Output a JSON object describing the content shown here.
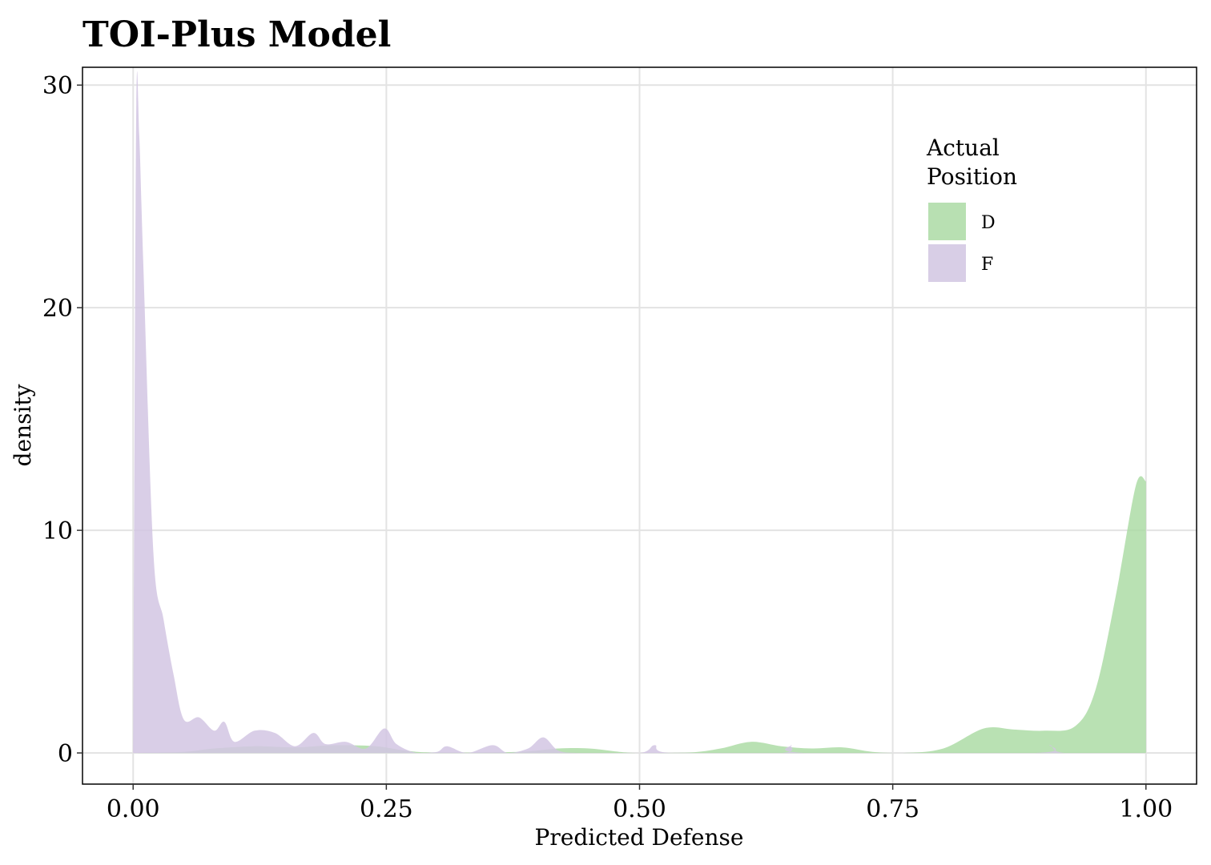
{
  "chart_data": {
    "type": "area",
    "title": "TOI-Plus Model",
    "xlabel": "Predicted Defense",
    "ylabel": "density",
    "xlim": [
      -0.05,
      1.05
    ],
    "ylim": [
      -1.4,
      30.8
    ],
    "x_ticks": [
      {
        "value": 0.0,
        "label": "0.00"
      },
      {
        "value": 0.25,
        "label": "0.25"
      },
      {
        "value": 0.5,
        "label": "0.50"
      },
      {
        "value": 0.75,
        "label": "0.75"
      },
      {
        "value": 1.0,
        "label": "1.00"
      }
    ],
    "y_ticks": [
      {
        "value": 0,
        "label": "0"
      },
      {
        "value": 10,
        "label": "10"
      },
      {
        "value": 20,
        "label": "20"
      },
      {
        "value": 30,
        "label": "30"
      }
    ],
    "grid": true,
    "legend": {
      "title_lines": [
        "Actual",
        "Position"
      ],
      "placement": "top-right",
      "entries": [
        {
          "label": "D",
          "color": "#b8e0b2"
        },
        {
          "label": "F",
          "color": "#d8cee6"
        }
      ]
    },
    "series": [
      {
        "name": "D",
        "color": "#a8d9a0",
        "opacity": 0.8,
        "points": [
          [
            0.0,
            0.0
          ],
          [
            0.05,
            0.05
          ],
          [
            0.08,
            0.2
          ],
          [
            0.12,
            0.3
          ],
          [
            0.16,
            0.25
          ],
          [
            0.2,
            0.35
          ],
          [
            0.24,
            0.3
          ],
          [
            0.27,
            0.1
          ],
          [
            0.3,
            0.02
          ],
          [
            0.38,
            0.05
          ],
          [
            0.42,
            0.2
          ],
          [
            0.45,
            0.2
          ],
          [
            0.48,
            0.05
          ],
          [
            0.5,
            0.0
          ],
          [
            0.55,
            0.02
          ],
          [
            0.58,
            0.2
          ],
          [
            0.61,
            0.5
          ],
          [
            0.64,
            0.3
          ],
          [
            0.67,
            0.2
          ],
          [
            0.7,
            0.25
          ],
          [
            0.73,
            0.05
          ],
          [
            0.76,
            0.0
          ],
          [
            0.8,
            0.2
          ],
          [
            0.84,
            1.1
          ],
          [
            0.87,
            1.05
          ],
          [
            0.9,
            1.0
          ],
          [
            0.93,
            1.2
          ],
          [
            0.95,
            2.8
          ],
          [
            0.97,
            7.0
          ],
          [
            0.99,
            12.0
          ],
          [
            1.0,
            12.2
          ]
        ]
      },
      {
        "name": "F",
        "color": "#d2c6e3",
        "opacity": 0.85,
        "points": [
          [
            0.0,
            0.0
          ],
          [
            0.003,
            28.5
          ],
          [
            0.006,
            27.8
          ],
          [
            0.01,
            22.0
          ],
          [
            0.02,
            9.0
          ],
          [
            0.03,
            6.0
          ],
          [
            0.04,
            3.5
          ],
          [
            0.05,
            1.5
          ],
          [
            0.065,
            1.6
          ],
          [
            0.08,
            1.0
          ],
          [
            0.09,
            1.4
          ],
          [
            0.1,
            0.5
          ],
          [
            0.12,
            1.0
          ],
          [
            0.14,
            0.9
          ],
          [
            0.16,
            0.3
          ],
          [
            0.178,
            0.9
          ],
          [
            0.19,
            0.4
          ],
          [
            0.21,
            0.5
          ],
          [
            0.23,
            0.2
          ],
          [
            0.248,
            1.1
          ],
          [
            0.26,
            0.4
          ],
          [
            0.28,
            0.0
          ],
          [
            0.3,
            0.05
          ],
          [
            0.31,
            0.3
          ],
          [
            0.33,
            0.0
          ],
          [
            0.355,
            0.35
          ],
          [
            0.37,
            0.0
          ],
          [
            0.39,
            0.2
          ],
          [
            0.405,
            0.7
          ],
          [
            0.42,
            0.1
          ],
          [
            0.44,
            0.0
          ],
          [
            0.5,
            0.0
          ],
          [
            0.515,
            0.35
          ],
          [
            0.53,
            0.0
          ],
          [
            0.64,
            0.0
          ],
          [
            0.65,
            0.35
          ],
          [
            0.665,
            0.0
          ],
          [
            0.89,
            0.0
          ],
          [
            0.905,
            0.35
          ],
          [
            0.92,
            0.0
          ],
          [
            1.0,
            0.0
          ]
        ]
      }
    ]
  }
}
